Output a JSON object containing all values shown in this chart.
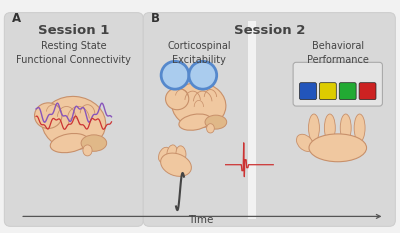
{
  "bg_color": "#f2f2f2",
  "panel_color": "#d8d8d8",
  "panel_edge_color": "#cccccc",
  "title_A": "Session 1",
  "title_B": "Session 2",
  "label_A": "A",
  "label_B": "B",
  "subtitle_1": "Resting State\nFunctional Connectivity",
  "subtitle_2a": "Corticospinal\nExcitability",
  "subtitle_2b": "Behavioral\nPerformance",
  "time_label": "Time",
  "brain_color": "#f0c8a0",
  "brain_edge": "#c8906a",
  "brain_fold": "#c8906a",
  "wave_purple": "#8855bb",
  "wave_red": "#cc3333",
  "coil_color": "#5588cc",
  "coil_fill": "#aaccee",
  "button_blue": "#2255bb",
  "button_yellow": "#ddcc00",
  "button_green": "#22aa33",
  "button_red": "#cc2222",
  "button_box": "#e8e8e8",
  "hand_color": "#f0c8a0",
  "hand_edge": "#c8906a",
  "emg_color": "#cc3333",
  "cable_color": "#444444",
  "text_color": "#444444",
  "title_fs": 9.5,
  "subtitle_fs": 7.0,
  "label_fs": 8.5,
  "time_fs": 7.5
}
